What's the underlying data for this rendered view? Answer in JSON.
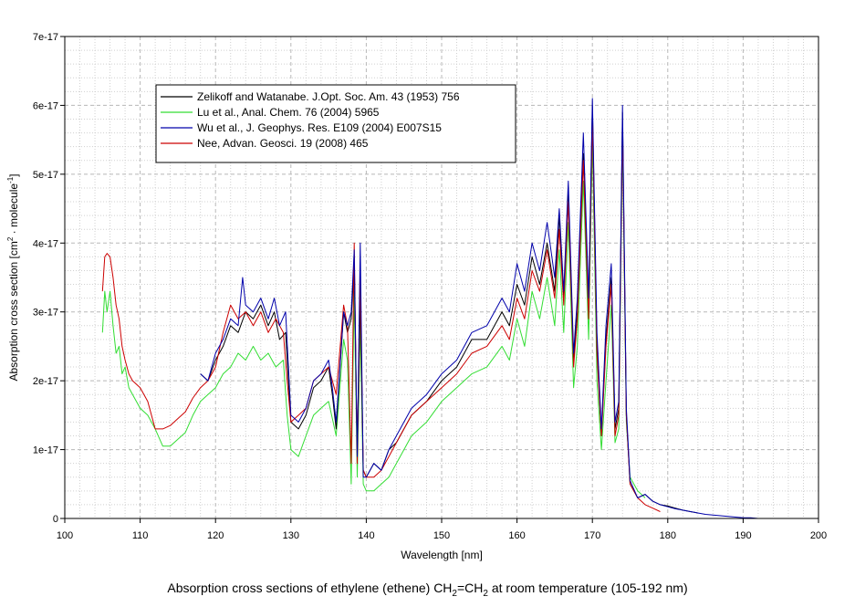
{
  "chart_data": {
    "type": "line",
    "xlabel": "Wavelength [nm]",
    "ylabel_parts": [
      "Absorption cross section [cm",
      "2",
      " · molecule",
      "-1",
      "]"
    ],
    "xlim": [
      100,
      200
    ],
    "ylim": [
      0,
      7e-17
    ],
    "x_ticks": [
      100,
      110,
      120,
      130,
      140,
      150,
      160,
      170,
      180,
      190,
      200
    ],
    "y_ticks": [
      0,
      1e-17,
      2e-17,
      3e-17,
      4e-17,
      5e-17,
      6e-17,
      7e-17
    ],
    "y_tick_labels": [
      "0",
      "1e-17",
      "2e-17",
      "3e-17",
      "4e-17",
      "5e-17",
      "6e-17",
      "7e-17"
    ],
    "grid": true,
    "legend_position": "top-left",
    "caption_parts": {
      "before": "Absorption cross sections of ethylene (ethene) CH",
      "sub1": "2",
      "middle": "=CH",
      "sub2": "2",
      "after": " at room temperature (105-192 nm)"
    },
    "series": [
      {
        "name": "Zelikoff and Watanabe. J.Opt. Soc. Am. 43 (1953) 756",
        "color": "#000000",
        "x": [
          118.0,
          119.0,
          120.0,
          121.0,
          122.0,
          123.0,
          124.0,
          125.0,
          126.0,
          127.0,
          127.8,
          128.5,
          129.3,
          130.0,
          131.0,
          132.0,
          133.0,
          134.0,
          135.0,
          135.5,
          136.0,
          137.0,
          137.5,
          138.0,
          138.4,
          138.8,
          139.2,
          139.6,
          140.0,
          141.0,
          142.0,
          143.0,
          144.0,
          145.0,
          146.0,
          148.0,
          150.0,
          152.0,
          154.0,
          156.0,
          158.0,
          159.0,
          160.0,
          161.0,
          162.0,
          163.0,
          164.0,
          165.0,
          165.6,
          166.2,
          166.8,
          167.5,
          168.0,
          168.8,
          169.5,
          170.0,
          170.6,
          171.2,
          171.8,
          172.5,
          173.0,
          173.5,
          174.0,
          174.5,
          175.0,
          176.0,
          177.0,
          178.0,
          179.0,
          180.0,
          181.0,
          182.0,
          183.0,
          184.0
        ],
        "y": [
          2.1e-17,
          2e-17,
          2.3e-17,
          2.5e-17,
          2.8e-17,
          2.7e-17,
          3e-17,
          2.9e-17,
          3.1e-17,
          2.8e-17,
          3e-17,
          2.6e-17,
          2.7e-17,
          1.4e-17,
          1.3e-17,
          1.5e-17,
          1.9e-17,
          2e-17,
          2.2e-17,
          1.8e-17,
          1.3e-17,
          3e-17,
          2.7e-17,
          2.9e-17,
          3.7e-17,
          9e-18,
          3.2e-17,
          7e-18,
          6e-18,
          8e-18,
          7e-18,
          1e-17,
          1.1e-17,
          1.3e-17,
          1.5e-17,
          1.7e-17,
          2e-17,
          2.2e-17,
          2.6e-17,
          2.6e-17,
          3e-17,
          2.8e-17,
          3.4e-17,
          3.1e-17,
          3.8e-17,
          3.4e-17,
          4e-17,
          3.3e-17,
          4.4e-17,
          3.2e-17,
          4.7e-17,
          2.3e-17,
          3e-17,
          5.3e-17,
          3e-17,
          6e-17,
          2.5e-17,
          1.2e-17,
          2.6e-17,
          3.5e-17,
          1.3e-17,
          1.6e-17,
          5.9e-17,
          1.5e-17,
          5e-18,
          3e-18,
          3.5e-18,
          2.5e-18,
          2e-18,
          1.8e-18,
          1.5e-18,
          1.2e-18,
          1e-18,
          8e-19
        ]
      },
      {
        "name": "Lu et al., Anal. Chem. 76 (2004) 5965",
        "color": "#33dd33",
        "x": [
          105.0,
          105.3,
          105.6,
          106.0,
          106.4,
          106.8,
          107.2,
          107.6,
          108.0,
          108.5,
          109.0,
          110.0,
          111.0,
          112.0,
          113.0,
          114.0,
          115.0,
          116.0,
          117.0,
          118.0,
          119.0,
          120.0,
          121.0,
          122.0,
          123.0,
          124.0,
          125.0,
          126.0,
          127.0,
          128.0,
          129.0,
          129.5,
          130.0,
          131.0,
          132.0,
          133.0,
          134.0,
          135.0,
          136.0,
          137.0,
          137.5,
          138.0,
          138.4,
          138.8,
          139.2,
          139.6,
          140.0,
          141.0,
          142.0,
          143.0,
          144.0,
          145.0,
          146.0,
          148.0,
          150.0,
          152.0,
          154.0,
          156.0,
          158.0,
          159.0,
          160.0,
          161.0,
          162.0,
          163.0,
          164.0,
          165.0,
          165.6,
          166.2,
          166.8,
          167.5,
          168.0,
          168.8,
          169.5,
          170.0,
          170.6,
          171.2,
          171.8,
          172.5,
          173.0,
          173.5,
          174.0,
          174.5,
          175.0,
          176.0,
          177.0
        ],
        "y": [
          2.7e-17,
          3.3e-17,
          3e-17,
          3.3e-17,
          2.8e-17,
          2.4e-17,
          2.5e-17,
          2.1e-17,
          2.2e-17,
          1.9e-17,
          1.8e-17,
          1.6e-17,
          1.5e-17,
          1.3e-17,
          1.05e-17,
          1.05e-17,
          1.15e-17,
          1.25e-17,
          1.5e-17,
          1.7e-17,
          1.8e-17,
          1.9e-17,
          2.1e-17,
          2.2e-17,
          2.4e-17,
          2.3e-17,
          2.5e-17,
          2.3e-17,
          2.4e-17,
          2.2e-17,
          2.3e-17,
          1.5e-17,
          1e-17,
          9e-18,
          1.2e-17,
          1.5e-17,
          1.6e-17,
          1.7e-17,
          1.2e-17,
          2.6e-17,
          2.3e-17,
          5e-18,
          3.3e-17,
          6e-18,
          2.8e-17,
          5e-18,
          4e-18,
          4e-18,
          5e-18,
          6e-18,
          8e-18,
          1e-17,
          1.2e-17,
          1.4e-17,
          1.7e-17,
          1.9e-17,
          2.1e-17,
          2.2e-17,
          2.5e-17,
          2.3e-17,
          2.9e-17,
          2.5e-17,
          3.3e-17,
          2.9e-17,
          3.5e-17,
          2.8e-17,
          3.9e-17,
          2.7e-17,
          4.3e-17,
          1.9e-17,
          2.5e-17,
          4.9e-17,
          2.6e-17,
          5.5e-17,
          2e-17,
          1e-17,
          2e-17,
          3.1e-17,
          1.1e-17,
          1.3e-17,
          5.5e-17,
          1.4e-17,
          6e-18,
          4e-18,
          3e-18
        ]
      },
      {
        "name": "Wu et al., J. Geophys. Res. E109 (2004) E007S15",
        "color": "#0000aa",
        "x": [
          118.0,
          119.0,
          120.0,
          121.0,
          122.0,
          123.0,
          123.6,
          124.0,
          125.0,
          126.0,
          127.0,
          127.8,
          128.5,
          129.3,
          130.0,
          131.0,
          132.0,
          133.0,
          134.0,
          135.0,
          135.5,
          136.0,
          137.0,
          137.5,
          138.0,
          138.4,
          138.8,
          139.2,
          139.6,
          140.0,
          141.0,
          142.0,
          143.0,
          144.0,
          145.0,
          146.0,
          148.0,
          150.0,
          152.0,
          154.0,
          156.0,
          158.0,
          159.0,
          160.0,
          161.0,
          162.0,
          163.0,
          164.0,
          165.0,
          165.6,
          166.2,
          166.8,
          167.5,
          168.0,
          168.8,
          169.5,
          170.0,
          170.6,
          171.2,
          171.8,
          172.5,
          173.0,
          173.5,
          174.0,
          174.5,
          175.0,
          176.0,
          177.0,
          178.0,
          179.0,
          180.0,
          181.0,
          182.0,
          183.0,
          184.0,
          185.0,
          186.0,
          187.0,
          188.0,
          189.0,
          190.0,
          191.0,
          192.0
        ],
        "y": [
          2.1e-17,
          2e-17,
          2.4e-17,
          2.6e-17,
          2.9e-17,
          2.8e-17,
          3.5e-17,
          3.1e-17,
          3e-17,
          3.2e-17,
          2.9e-17,
          3.2e-17,
          2.8e-17,
          3e-17,
          1.5e-17,
          1.4e-17,
          1.6e-17,
          2e-17,
          2.1e-17,
          2.3e-17,
          1.9e-17,
          1.4e-17,
          3e-17,
          2.8e-17,
          3e-17,
          3.9e-17,
          9e-18,
          4e-17,
          6e-18,
          6e-18,
          8e-18,
          7e-18,
          1e-17,
          1.2e-17,
          1.4e-17,
          1.6e-17,
          1.8e-17,
          2.1e-17,
          2.3e-17,
          2.7e-17,
          2.8e-17,
          3.2e-17,
          3e-17,
          3.7e-17,
          3.3e-17,
          4e-17,
          3.6e-17,
          4.3e-17,
          3.5e-17,
          4.5e-17,
          3.3e-17,
          4.9e-17,
          2.4e-17,
          3.2e-17,
          5.6e-17,
          3.2e-17,
          6.1e-17,
          2.7e-17,
          1.3e-17,
          2.8e-17,
          3.7e-17,
          1.4e-17,
          1.7e-17,
          6e-17,
          1.6e-17,
          5.5e-18,
          3e-18,
          3.5e-18,
          2.5e-18,
          2e-18,
          1.7e-18,
          1.4e-18,
          1.2e-18,
          1e-18,
          8e-19,
          6e-19,
          5e-19,
          4e-19,
          3e-19,
          2e-19,
          1e-19,
          1e-19,
          0.0
        ]
      },
      {
        "name": "Nee, Advan. Geosci. 19 (2008) 465",
        "color": "#cc0000",
        "x": [
          105.0,
          105.3,
          105.6,
          106.0,
          106.4,
          106.8,
          107.2,
          107.6,
          108.0,
          108.5,
          109.0,
          110.0,
          111.0,
          112.0,
          113.0,
          114.0,
          115.0,
          116.0,
          117.0,
          118.0,
          119.0,
          120.0,
          121.0,
          122.0,
          123.0,
          124.0,
          125.0,
          126.0,
          127.0,
          128.0,
          129.0,
          129.5,
          130.0,
          131.0,
          132.0,
          133.0,
          134.0,
          135.0,
          136.0,
          137.0,
          137.5,
          138.0,
          138.4,
          138.8,
          139.2,
          139.6,
          140.0,
          141.0,
          142.0,
          143.0,
          144.0,
          145.0,
          146.0,
          148.0,
          150.0,
          152.0,
          154.0,
          156.0,
          158.0,
          159.0,
          160.0,
          161.0,
          162.0,
          163.0,
          164.0,
          165.0,
          165.6,
          166.2,
          166.8,
          167.5,
          168.0,
          168.8,
          169.5,
          170.0,
          170.6,
          171.2,
          171.8,
          172.5,
          173.0,
          173.5,
          174.0,
          174.5,
          175.0,
          176.0,
          177.0,
          178.0,
          179.0
        ],
        "y": [
          3.3e-17,
          3.8e-17,
          3.85e-17,
          3.8e-17,
          3.5e-17,
          3.1e-17,
          2.9e-17,
          2.5e-17,
          2.3e-17,
          2.1e-17,
          2e-17,
          1.9e-17,
          1.7e-17,
          1.3e-17,
          1.3e-17,
          1.35e-17,
          1.45e-17,
          1.55e-17,
          1.75e-17,
          1.9e-17,
          2e-17,
          2.2e-17,
          2.7e-17,
          3.1e-17,
          2.9e-17,
          3e-17,
          2.8e-17,
          3e-17,
          2.7e-17,
          2.9e-17,
          2.7e-17,
          2e-17,
          1.4e-17,
          1.5e-17,
          1.6e-17,
          2e-17,
          2.1e-17,
          2.2e-17,
          1.8e-17,
          3.1e-17,
          2.8e-17,
          8e-18,
          4e-17,
          8e-18,
          3.5e-17,
          7e-18,
          6e-18,
          6e-18,
          7e-18,
          9e-18,
          1.1e-17,
          1.3e-17,
          1.5e-17,
          1.7e-17,
          1.9e-17,
          2.1e-17,
          2.4e-17,
          2.5e-17,
          2.8e-17,
          2.6e-17,
          3.2e-17,
          2.9e-17,
          3.6e-17,
          3.3e-17,
          3.9e-17,
          3.2e-17,
          4.2e-17,
          3.1e-17,
          4.6e-17,
          2.2e-17,
          2.9e-17,
          5.2e-17,
          2.9e-17,
          5.8e-17,
          2.4e-17,
          1.2e-17,
          2.5e-17,
          3.4e-17,
          1.2e-17,
          1.5e-17,
          5.7e-17,
          1.5e-17,
          5e-18,
          3e-18,
          2e-18,
          1.5e-18,
          1e-18
        ]
      }
    ]
  }
}
